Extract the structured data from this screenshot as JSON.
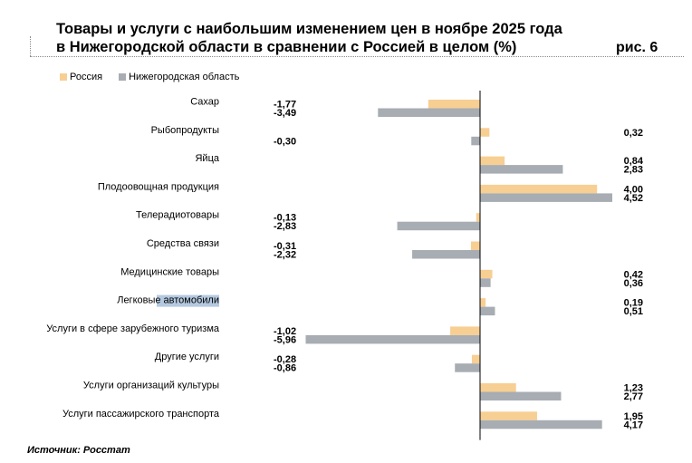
{
  "title_line1": "Товары и услуги с наибольшим изменением цен в ноябре 2025 года",
  "title_line2": "в Нижегородской области в сравнении с Россией в целом (%)",
  "figure_label": "рис. 6",
  "source": "Источник: Росстат",
  "colors": {
    "russia": "#f7cf93",
    "region": "#a7adb2",
    "axis": "#000000",
    "highlight": "#b4c9e0"
  },
  "chart_data": {
    "type": "bar",
    "orientation": "horizontal",
    "title": "Товары и услуги с наибольшим изменением цен в ноябре 2025 года в Нижегородской области в сравнении с Россией в целом (%)",
    "xlabel": "",
    "ylabel": "",
    "xlim": [
      -6.0,
      4.8
    ],
    "grid": false,
    "legend_position": "top-left",
    "categories": [
      "Сахар",
      "Рыбопродукты",
      "Яйца",
      "Плодоовощная продукция",
      "Телерадиотовары",
      "Средства связи",
      "Медицинские товары",
      "Легковые автомобили",
      "Услуги в сфере зарубежного туризма",
      "Другие услуги",
      "Услуги организаций культуры",
      "Услуги пассажирского транспорта"
    ],
    "series": [
      {
        "name": "Россия",
        "values": [
          -1.77,
          0.32,
          0.84,
          4.0,
          -0.13,
          -0.31,
          0.42,
          0.19,
          -1.02,
          -0.28,
          1.23,
          1.95
        ],
        "labels": [
          "-1,77",
          "0,32",
          "0,84",
          "4,00",
          "-0,13",
          "-0,31",
          "0,42",
          "0,19",
          "-1,02",
          "-0,28",
          "1,23",
          "1,95"
        ]
      },
      {
        "name": "Нижегородская область",
        "values": [
          -3.49,
          -0.3,
          2.83,
          4.52,
          -2.83,
          -2.32,
          0.36,
          0.51,
          -5.96,
          -0.86,
          2.77,
          4.17
        ],
        "labels": [
          "-3,49",
          "-0,30",
          "2,83",
          "4,52",
          "-2,83",
          "-2,32",
          "0,36",
          "0,51",
          "-5,96",
          "-0,86",
          "2,77",
          "4,17"
        ]
      }
    ]
  }
}
